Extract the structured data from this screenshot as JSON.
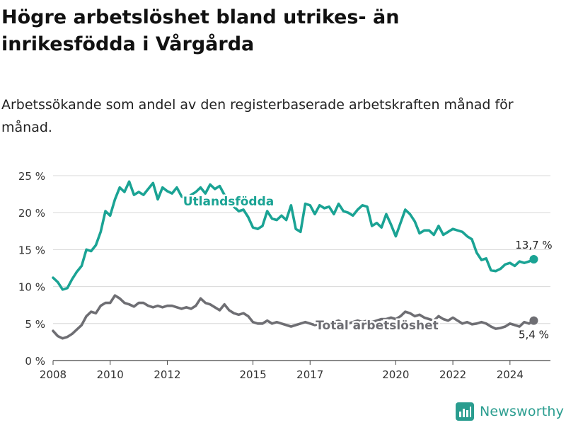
{
  "title": "Högre arbetslöshet bland utrikes- än inrikesfödda i Vårgårda",
  "subtitle": "Arbetssökande som andel av den registerbaserade arbetskraften månad för månad.",
  "brand": {
    "name": "Newsworthy",
    "color": "#2a9d8f"
  },
  "chart_data": {
    "type": "line",
    "ylim": [
      0,
      25
    ],
    "xlim": [
      "2008-01",
      "2025-06"
    ],
    "y_ticks": [
      0,
      5,
      10,
      15,
      20,
      25
    ],
    "y_tick_labels": [
      "0 %",
      "5 %",
      "10 %",
      "15 %",
      "20 %",
      "25 %"
    ],
    "x_ticks": [
      {
        "date": "2008-01",
        "label": "2008"
      },
      {
        "date": "2010-01",
        "label": "2010"
      },
      {
        "date": "2012-01",
        "label": "2012"
      },
      {
        "date": "2015-01",
        "label": "2015"
      },
      {
        "date": "2017-01",
        "label": "2017"
      },
      {
        "date": "2020-01",
        "label": "2020"
      },
      {
        "date": "2022-01",
        "label": "2022"
      },
      {
        "date": "2024-01",
        "label": "2024"
      }
    ],
    "grid": "horizontal",
    "series": [
      {
        "name": "Utlandsfödda",
        "color": "#1aa394",
        "end_label": "13,7 %",
        "points": [
          [
            "2008-01",
            11.2
          ],
          [
            "2008-03",
            10.6
          ],
          [
            "2008-05",
            9.6
          ],
          [
            "2008-07",
            9.8
          ],
          [
            "2008-09",
            11.0
          ],
          [
            "2008-11",
            12.0
          ],
          [
            "2009-01",
            12.8
          ],
          [
            "2009-03",
            15.0
          ],
          [
            "2009-05",
            14.8
          ],
          [
            "2009-07",
            15.6
          ],
          [
            "2009-09",
            17.4
          ],
          [
            "2009-11",
            20.2
          ],
          [
            "2010-01",
            19.6
          ],
          [
            "2010-03",
            21.8
          ],
          [
            "2010-05",
            23.4
          ],
          [
            "2010-07",
            22.8
          ],
          [
            "2010-09",
            24.2
          ],
          [
            "2010-11",
            22.4
          ],
          [
            "2011-01",
            22.8
          ],
          [
            "2011-03",
            22.4
          ],
          [
            "2011-05",
            23.2
          ],
          [
            "2011-07",
            24.0
          ],
          [
            "2011-09",
            21.8
          ],
          [
            "2011-11",
            23.4
          ],
          [
            "2012-01",
            22.9
          ],
          [
            "2012-03",
            22.6
          ],
          [
            "2012-05",
            23.4
          ],
          [
            "2012-07",
            22.2
          ],
          [
            "2012-09",
            21.8
          ],
          [
            "2012-11",
            22.4
          ],
          [
            "2013-01",
            22.8
          ],
          [
            "2013-03",
            23.4
          ],
          [
            "2013-05",
            22.6
          ],
          [
            "2013-07",
            23.8
          ],
          [
            "2013-09",
            23.2
          ],
          [
            "2013-11",
            23.6
          ],
          [
            "2014-01",
            22.4
          ],
          [
            "2014-03",
            21.8
          ],
          [
            "2014-05",
            20.8
          ],
          [
            "2014-07",
            20.2
          ],
          [
            "2014-09",
            20.4
          ],
          [
            "2014-11",
            19.4
          ],
          [
            "2015-01",
            18.0
          ],
          [
            "2015-03",
            17.8
          ],
          [
            "2015-05",
            18.2
          ],
          [
            "2015-07",
            20.2
          ],
          [
            "2015-09",
            19.2
          ],
          [
            "2015-11",
            19.0
          ],
          [
            "2016-01",
            19.6
          ],
          [
            "2016-03",
            19.0
          ],
          [
            "2016-05",
            21.0
          ],
          [
            "2016-07",
            17.8
          ],
          [
            "2016-09",
            17.4
          ],
          [
            "2016-11",
            21.2
          ],
          [
            "2017-01",
            21.0
          ],
          [
            "2017-03",
            19.8
          ],
          [
            "2017-05",
            21.0
          ],
          [
            "2017-07",
            20.6
          ],
          [
            "2017-09",
            20.8
          ],
          [
            "2017-11",
            19.8
          ],
          [
            "2018-01",
            21.2
          ],
          [
            "2018-03",
            20.2
          ],
          [
            "2018-05",
            20.0
          ],
          [
            "2018-07",
            19.6
          ],
          [
            "2018-09",
            20.4
          ],
          [
            "2018-11",
            21.0
          ],
          [
            "2019-01",
            20.8
          ],
          [
            "2019-03",
            18.2
          ],
          [
            "2019-05",
            18.6
          ],
          [
            "2019-07",
            18.0
          ],
          [
            "2019-09",
            19.8
          ],
          [
            "2019-11",
            18.4
          ],
          [
            "2020-01",
            16.8
          ],
          [
            "2020-03",
            18.6
          ],
          [
            "2020-05",
            20.4
          ],
          [
            "2020-07",
            19.8
          ],
          [
            "2020-09",
            18.8
          ],
          [
            "2020-11",
            17.2
          ],
          [
            "2021-01",
            17.6
          ],
          [
            "2021-03",
            17.6
          ],
          [
            "2021-05",
            17.0
          ],
          [
            "2021-07",
            18.2
          ],
          [
            "2021-09",
            17.0
          ],
          [
            "2021-11",
            17.4
          ],
          [
            "2022-01",
            17.8
          ],
          [
            "2022-03",
            17.6
          ],
          [
            "2022-05",
            17.4
          ],
          [
            "2022-07",
            16.8
          ],
          [
            "2022-09",
            16.4
          ],
          [
            "2022-11",
            14.6
          ],
          [
            "2023-01",
            13.6
          ],
          [
            "2023-03",
            13.8
          ],
          [
            "2023-05",
            12.2
          ],
          [
            "2023-07",
            12.1
          ],
          [
            "2023-09",
            12.4
          ],
          [
            "2023-11",
            13.0
          ],
          [
            "2024-01",
            13.2
          ],
          [
            "2024-03",
            12.8
          ],
          [
            "2024-05",
            13.4
          ],
          [
            "2024-07",
            13.2
          ],
          [
            "2024-09",
            13.4
          ],
          [
            "2024-11",
            13.7
          ]
        ]
      },
      {
        "name": "Total arbetslöshet",
        "color": "#6e6e73",
        "end_label": "5,4 %",
        "points": [
          [
            "2008-01",
            4.0
          ],
          [
            "2008-03",
            3.3
          ],
          [
            "2008-05",
            3.0
          ],
          [
            "2008-07",
            3.2
          ],
          [
            "2008-09",
            3.6
          ],
          [
            "2008-11",
            4.2
          ],
          [
            "2009-01",
            4.8
          ],
          [
            "2009-03",
            6.0
          ],
          [
            "2009-05",
            6.6
          ],
          [
            "2009-07",
            6.4
          ],
          [
            "2009-09",
            7.4
          ],
          [
            "2009-11",
            7.8
          ],
          [
            "2010-01",
            7.8
          ],
          [
            "2010-03",
            8.8
          ],
          [
            "2010-05",
            8.4
          ],
          [
            "2010-07",
            7.8
          ],
          [
            "2010-09",
            7.6
          ],
          [
            "2010-11",
            7.3
          ],
          [
            "2011-01",
            7.8
          ],
          [
            "2011-03",
            7.8
          ],
          [
            "2011-05",
            7.4
          ],
          [
            "2011-07",
            7.2
          ],
          [
            "2011-09",
            7.4
          ],
          [
            "2011-11",
            7.2
          ],
          [
            "2012-01",
            7.4
          ],
          [
            "2012-03",
            7.4
          ],
          [
            "2012-05",
            7.2
          ],
          [
            "2012-07",
            7.0
          ],
          [
            "2012-09",
            7.2
          ],
          [
            "2012-11",
            7.0
          ],
          [
            "2013-01",
            7.4
          ],
          [
            "2013-03",
            8.4
          ],
          [
            "2013-05",
            7.8
          ],
          [
            "2013-07",
            7.6
          ],
          [
            "2013-09",
            7.2
          ],
          [
            "2013-11",
            6.8
          ],
          [
            "2014-01",
            7.6
          ],
          [
            "2014-03",
            6.8
          ],
          [
            "2014-05",
            6.4
          ],
          [
            "2014-07",
            6.2
          ],
          [
            "2014-09",
            6.4
          ],
          [
            "2014-11",
            6.0
          ],
          [
            "2015-01",
            5.2
          ],
          [
            "2015-03",
            5.0
          ],
          [
            "2015-05",
            5.0
          ],
          [
            "2015-07",
            5.4
          ],
          [
            "2015-09",
            5.0
          ],
          [
            "2015-11",
            5.2
          ],
          [
            "2016-01",
            5.0
          ],
          [
            "2016-03",
            4.8
          ],
          [
            "2016-05",
            4.6
          ],
          [
            "2016-07",
            4.8
          ],
          [
            "2016-09",
            5.0
          ],
          [
            "2016-11",
            5.2
          ],
          [
            "2017-01",
            5.0
          ],
          [
            "2017-03",
            4.8
          ],
          [
            "2017-05",
            5.0
          ],
          [
            "2017-07",
            4.8
          ],
          [
            "2017-09",
            5.0
          ],
          [
            "2017-11",
            5.2
          ],
          [
            "2018-01",
            5.4
          ],
          [
            "2018-03",
            5.0
          ],
          [
            "2018-05",
            5.0
          ],
          [
            "2018-07",
            5.2
          ],
          [
            "2018-09",
            5.4
          ],
          [
            "2018-11",
            5.2
          ],
          [
            "2019-01",
            5.4
          ],
          [
            "2019-03",
            5.2
          ],
          [
            "2019-05",
            5.4
          ],
          [
            "2019-07",
            5.6
          ],
          [
            "2019-09",
            5.6
          ],
          [
            "2019-11",
            5.8
          ],
          [
            "2020-01",
            5.6
          ],
          [
            "2020-03",
            6.0
          ],
          [
            "2020-05",
            6.6
          ],
          [
            "2020-07",
            6.4
          ],
          [
            "2020-09",
            6.0
          ],
          [
            "2020-11",
            6.2
          ],
          [
            "2021-01",
            5.8
          ],
          [
            "2021-03",
            5.6
          ],
          [
            "2021-05",
            5.4
          ],
          [
            "2021-07",
            6.0
          ],
          [
            "2021-09",
            5.6
          ],
          [
            "2021-11",
            5.4
          ],
          [
            "2022-01",
            5.8
          ],
          [
            "2022-03",
            5.4
          ],
          [
            "2022-05",
            5.0
          ],
          [
            "2022-07",
            5.2
          ],
          [
            "2022-09",
            4.9
          ],
          [
            "2022-11",
            5.0
          ],
          [
            "2023-01",
            5.2
          ],
          [
            "2023-03",
            5.0
          ],
          [
            "2023-05",
            4.6
          ],
          [
            "2023-07",
            4.3
          ],
          [
            "2023-09",
            4.4
          ],
          [
            "2023-11",
            4.6
          ],
          [
            "2024-01",
            5.0
          ],
          [
            "2024-03",
            4.8
          ],
          [
            "2024-05",
            4.6
          ],
          [
            "2024-07",
            5.2
          ],
          [
            "2024-09",
            5.0
          ],
          [
            "2024-11",
            5.4
          ]
        ]
      }
    ]
  }
}
